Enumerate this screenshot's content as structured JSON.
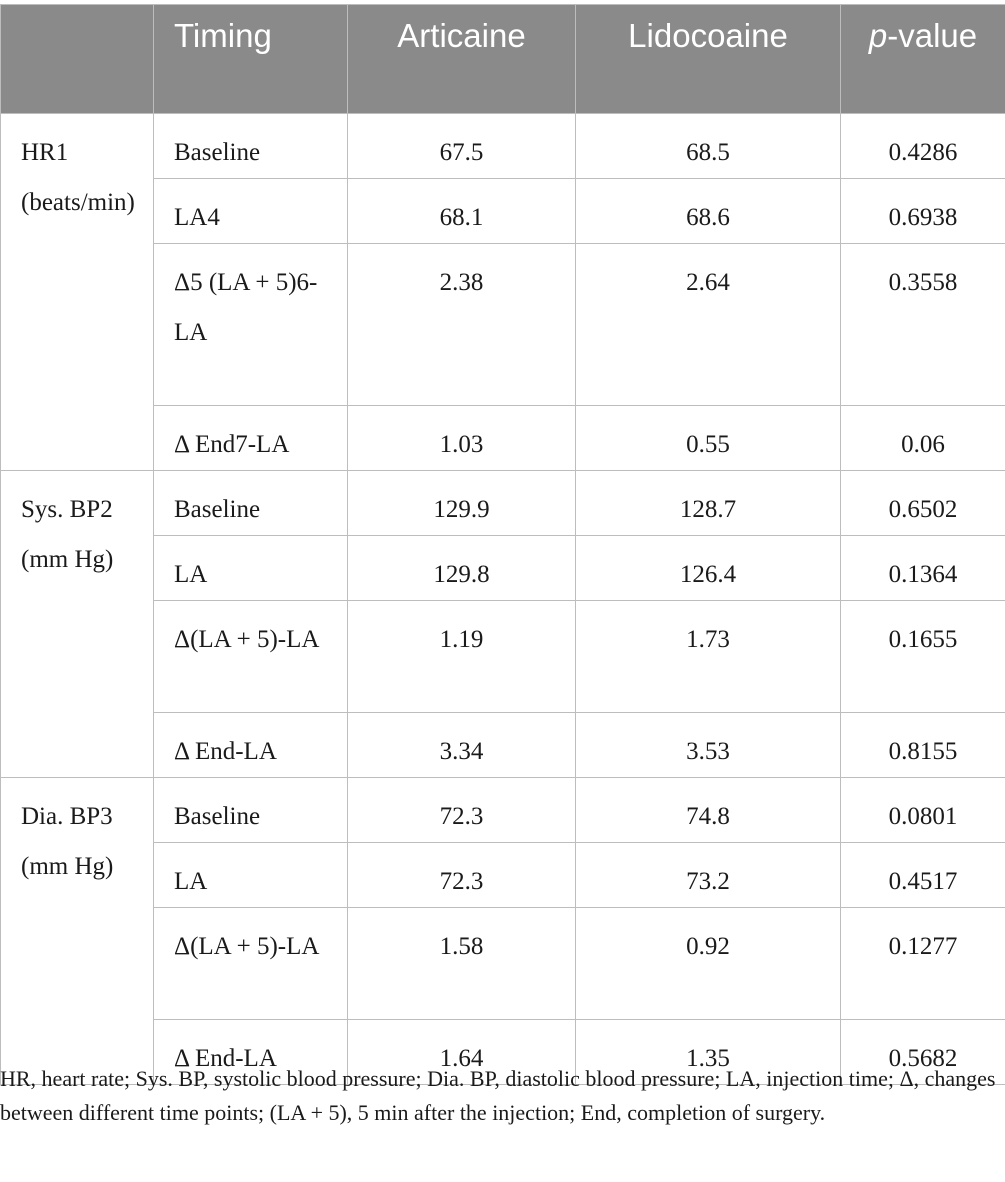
{
  "headers": {
    "blank": "",
    "timing": "Timing",
    "articaine": "Articaine",
    "lidocaine": "Lidocoaine",
    "p_italic": "p",
    "p_rest": "-value"
  },
  "groups": [
    {
      "label": "HR1 (beats/min)",
      "rows": [
        {
          "timing": "Baseline",
          "articaine": "67.5",
          "lidocaine": "68.5",
          "p": "0.4286"
        },
        {
          "timing": "LA4",
          "articaine": "68.1",
          "lidocaine": "68.6",
          "p": "0.6938"
        },
        {
          "timing": "Δ5 (LA + 5)6-LA",
          "articaine": "2.38",
          "lidocaine": "2.64",
          "p": "0.3558"
        },
        {
          "timing": "Δ End7-LA",
          "articaine": "1.03",
          "lidocaine": "0.55",
          "p": "0.06"
        }
      ]
    },
    {
      "label": "Sys. BP2 (mm Hg)",
      "rows": [
        {
          "timing": "Baseline",
          "articaine": "129.9",
          "lidocaine": "128.7",
          "p": "0.6502"
        },
        {
          "timing": "LA",
          "articaine": "129.8",
          "lidocaine": "126.4",
          "p": "0.1364"
        },
        {
          "timing": "Δ(LA + 5)-LA",
          "articaine": "1.19",
          "lidocaine": "1.73",
          "p": "0.1655"
        },
        {
          "timing": "Δ End-LA",
          "articaine": "3.34",
          "lidocaine": "3.53",
          "p": "0.8155"
        }
      ]
    },
    {
      "label": "Dia. BP3 (mm Hg)",
      "rows": [
        {
          "timing": "Baseline",
          "articaine": "72.3",
          "lidocaine": "74.8",
          "p": "0.0801"
        },
        {
          "timing": "LA",
          "articaine": "72.3",
          "lidocaine": "73.2",
          "p": "0.4517"
        },
        {
          "timing": "Δ(LA + 5)-LA",
          "articaine": "1.58",
          "lidocaine": "0.92",
          "p": "0.1277"
        },
        {
          "timing": "Δ End-LA",
          "articaine": "1.64",
          "lidocaine": "1.35",
          "p": "0.5682"
        }
      ]
    }
  ],
  "footnote": "HR, heart rate; Sys. BP, systolic blood pressure; Dia. BP, diastolic blood pressure; LA, injection time; Δ, changes between different time points; (LA + 5), 5 min after the injection; End, completion of surgery."
}
